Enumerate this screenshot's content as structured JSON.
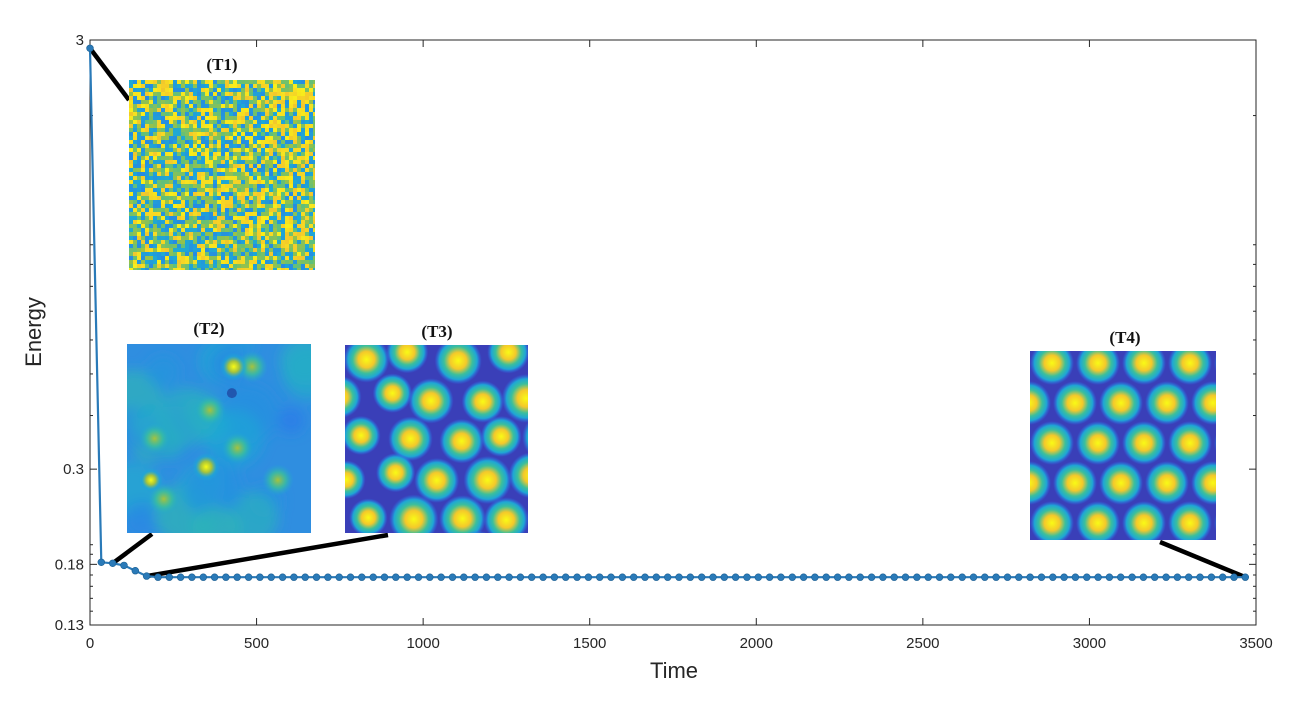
{
  "chart_data": {
    "type": "line",
    "title": "",
    "xlabel": "Time",
    "ylabel": "Energy",
    "xlim": [
      0,
      3500
    ],
    "ylim": [
      0.13,
      3
    ],
    "y_scale": "log",
    "x_ticks": [
      0,
      500,
      1000,
      1500,
      2000,
      2500,
      3000,
      3500
    ],
    "x_tick_labels": [
      "0",
      "500",
      "1000",
      "1500",
      "2000",
      "2500",
      "3000",
      "3500"
    ],
    "y_ticks": [
      0.13,
      0.18,
      0.3,
      3
    ],
    "y_tick_labels": [
      "0.13",
      "0.18",
      "0.3",
      "3"
    ],
    "grid": false,
    "legend": "none",
    "series": [
      {
        "color": "#2a7ab8",
        "marker": "circle",
        "x": [
          0,
          34,
          68,
          102,
          136,
          170,
          204,
          238,
          272,
          306,
          340,
          374,
          408,
          442,
          476,
          510,
          544,
          578,
          612,
          646,
          680,
          714,
          748,
          782,
          816,
          850,
          884,
          918,
          952,
          986,
          1020,
          1054,
          1088,
          1122,
          1156,
          1190,
          1224,
          1258,
          1292,
          1326,
          1360,
          1394,
          1428,
          1462,
          1496,
          1530,
          1564,
          1598,
          1632,
          1666,
          1700,
          1734,
          1768,
          1802,
          1836,
          1870,
          1904,
          1938,
          1972,
          2006,
          2040,
          2074,
          2108,
          2142,
          2176,
          2210,
          2244,
          2278,
          2312,
          2346,
          2380,
          2414,
          2448,
          2482,
          2516,
          2550,
          2584,
          2618,
          2652,
          2686,
          2720,
          2754,
          2788,
          2822,
          2856,
          2890,
          2924,
          2958,
          2992,
          3026,
          3060,
          3094,
          3128,
          3162,
          3196,
          3230,
          3264,
          3298,
          3332,
          3366,
          3400,
          3434,
          3468
        ],
        "y": [
          2.87,
          0.182,
          0.181,
          0.179,
          0.174,
          0.169,
          0.168,
          0.168,
          0.168,
          0.168,
          0.168,
          0.168,
          0.168,
          0.168,
          0.168,
          0.168,
          0.168,
          0.168,
          0.168,
          0.168,
          0.168,
          0.168,
          0.168,
          0.168,
          0.168,
          0.168,
          0.168,
          0.168,
          0.168,
          0.168,
          0.168,
          0.168,
          0.168,
          0.168,
          0.168,
          0.168,
          0.168,
          0.168,
          0.168,
          0.168,
          0.168,
          0.168,
          0.168,
          0.168,
          0.168,
          0.168,
          0.168,
          0.168,
          0.168,
          0.168,
          0.168,
          0.168,
          0.168,
          0.168,
          0.168,
          0.168,
          0.168,
          0.168,
          0.168,
          0.168,
          0.168,
          0.168,
          0.168,
          0.168,
          0.168,
          0.168,
          0.168,
          0.168,
          0.168,
          0.168,
          0.168,
          0.168,
          0.168,
          0.168,
          0.168,
          0.168,
          0.168,
          0.168,
          0.168,
          0.168,
          0.168,
          0.168,
          0.168,
          0.168,
          0.168,
          0.168,
          0.168,
          0.168,
          0.168,
          0.168,
          0.168,
          0.168,
          0.168,
          0.168,
          0.168,
          0.168,
          0.168,
          0.168,
          0.168,
          0.168,
          0.168,
          0.168,
          0.168
        ]
      }
    ],
    "insets": [
      {
        "label": "(T1)",
        "pattern": "noise",
        "points_to": {
          "x": 0,
          "y": 2.87
        }
      },
      {
        "label": "(T2)",
        "pattern": "blurred",
        "points_to": {
          "x": 68,
          "y": 0.181
        }
      },
      {
        "label": "(T3)",
        "pattern": "spots",
        "points_to": {
          "x": 170,
          "y": 0.169
        }
      },
      {
        "label": "(T4)",
        "pattern": "hexagonal",
        "points_to": {
          "x": 3468,
          "y": 0.168
        }
      }
    ]
  },
  "colors": {
    "line": "#2a7ab8",
    "colormap": [
      "#3e26a8",
      "#2f6ef0",
      "#1ea7d5",
      "#3bbf9c",
      "#a6c23d",
      "#f4c82b",
      "#f9fb15"
    ]
  }
}
